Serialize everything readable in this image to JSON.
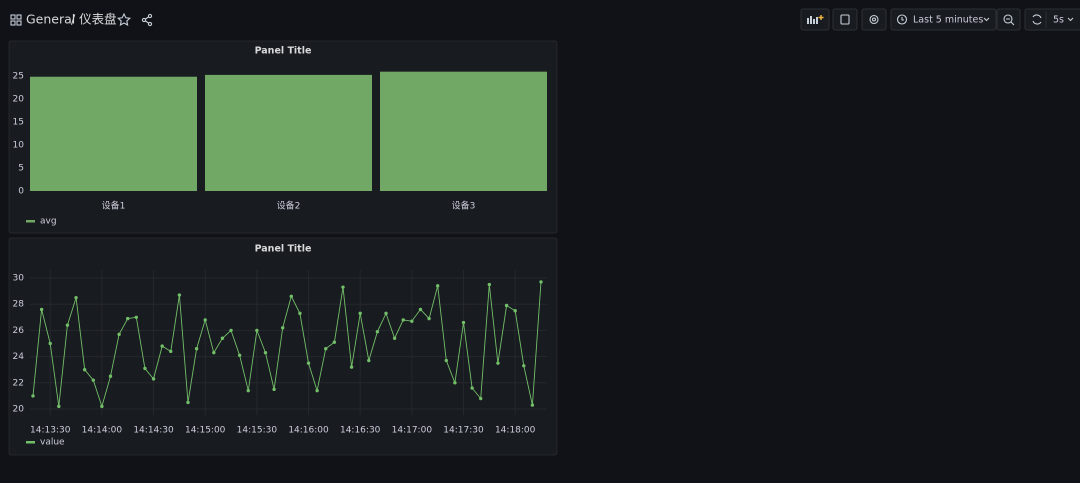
{
  "header": {
    "folder": "General",
    "title": "/ 仪表盘",
    "time_range": "Last 5 minutes",
    "refresh": "5s"
  },
  "chart_data": [
    {
      "type": "bar",
      "title": "Panel Title",
      "categories": [
        "设备1",
        "设备2",
        "设备3"
      ],
      "series": [
        {
          "name": "avg",
          "color": "#72a866",
          "values": [
            24.8,
            25.2,
            25.9
          ]
        }
      ],
      "ylim": [
        0,
        26
      ],
      "yticks": [
        0,
        5,
        10,
        15,
        20,
        25
      ],
      "grid": false
    },
    {
      "type": "line",
      "title": "Panel Title",
      "x": [
        "14:13:20",
        "14:13:25",
        "14:13:30",
        "14:13:35",
        "14:13:40",
        "14:13:45",
        "14:13:50",
        "14:13:55",
        "14:14:00",
        "14:14:05",
        "14:14:10",
        "14:14:15",
        "14:14:20",
        "14:14:25",
        "14:14:30",
        "14:14:35",
        "14:14:40",
        "14:14:45",
        "14:14:50",
        "14:14:55",
        "14:15:00",
        "14:15:05",
        "14:15:10",
        "14:15:15",
        "14:15:20",
        "14:15:25",
        "14:15:30",
        "14:15:35",
        "14:15:40",
        "14:15:45",
        "14:15:50",
        "14:15:55",
        "14:16:00",
        "14:16:05",
        "14:16:10",
        "14:16:15",
        "14:16:20",
        "14:16:25",
        "14:16:30",
        "14:16:35",
        "14:16:40",
        "14:16:45",
        "14:16:50",
        "14:16:55",
        "14:17:00",
        "14:17:05",
        "14:17:10",
        "14:17:15",
        "14:17:20",
        "14:17:25",
        "14:17:30",
        "14:17:35",
        "14:17:40",
        "14:17:45",
        "14:17:50",
        "14:17:55",
        "14:18:00",
        "14:18:05",
        "14:18:10",
        "14:18:15"
      ],
      "series": [
        {
          "name": "value",
          "color": "#73bf69",
          "values": [
            21.0,
            27.6,
            25.0,
            20.2,
            26.4,
            28.5,
            23.0,
            22.2,
            20.2,
            22.5,
            25.7,
            26.9,
            27.0,
            23.1,
            22.3,
            24.8,
            24.4,
            28.7,
            20.5,
            24.6,
            26.8,
            24.3,
            25.4,
            26.0,
            24.1,
            21.4,
            26.0,
            24.3,
            21.5,
            26.2,
            28.6,
            27.3,
            23.5,
            21.4,
            24.6,
            25.1,
            29.3,
            23.2,
            27.3,
            23.7,
            25.9,
            27.3,
            25.4,
            26.8,
            26.7,
            27.6,
            26.9,
            29.4,
            23.7,
            22.0,
            26.6,
            21.6,
            20.8,
            29.5,
            23.5,
            27.9,
            27.5,
            23.3,
            20.3,
            29.7
          ]
        }
      ],
      "xlim": [
        "14:13:20",
        "14:18:15"
      ],
      "xticks": [
        "14:13:30",
        "14:14:00",
        "14:14:30",
        "14:15:00",
        "14:15:30",
        "14:16:00",
        "14:16:30",
        "14:17:00",
        "14:17:30",
        "14:18:00"
      ],
      "ylim": [
        20,
        30
      ],
      "yticks": [
        20,
        22,
        24,
        26,
        28,
        30
      ],
      "grid": true
    }
  ]
}
